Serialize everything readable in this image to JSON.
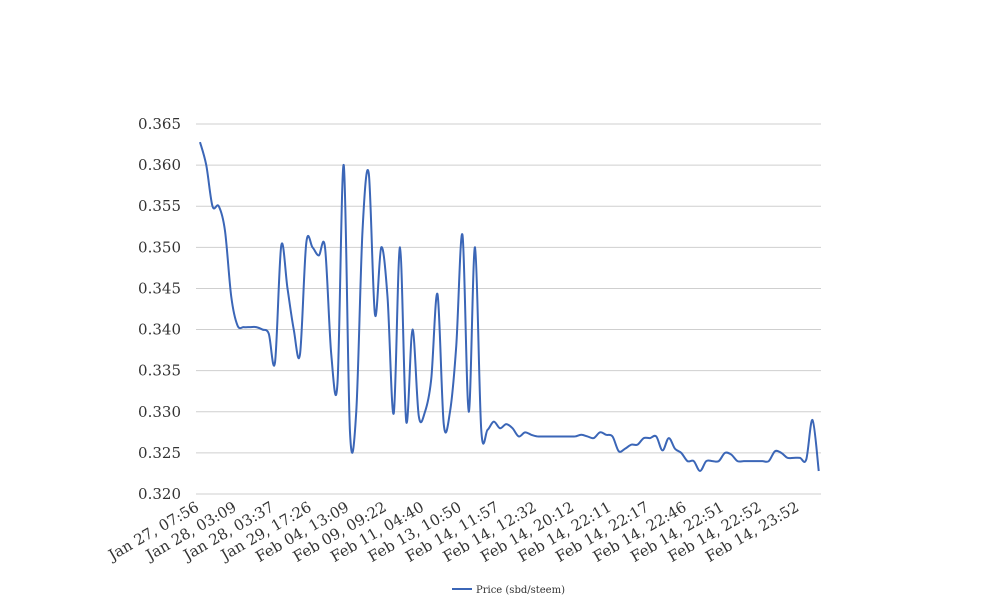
{
  "chart_data": {
    "type": "line",
    "categories": [
      "Jan 27, 07:56",
      null,
      null,
      null,
      null,
      null,
      "Jan 28, 03:09",
      null,
      null,
      null,
      null,
      null,
      "Jan 28, 03:37",
      null,
      null,
      null,
      null,
      null,
      "Jan 29, 17:26",
      null,
      null,
      null,
      null,
      null,
      "Feb 04, 13:09",
      null,
      null,
      null,
      null,
      null,
      "Feb 09, 09:22",
      null,
      null,
      null,
      null,
      null,
      "Feb 11, 04:40",
      null,
      null,
      null,
      null,
      null,
      "Feb 13, 10:50",
      null,
      null,
      null,
      null,
      null,
      "Feb 14, 11:57",
      null,
      null,
      null,
      null,
      null,
      "Feb 14, 12:32",
      null,
      null,
      null,
      null,
      null,
      "Feb 14, 20:12",
      null,
      null,
      null,
      null,
      null,
      "Feb 14, 22:11",
      null,
      null,
      null,
      null,
      null,
      "Feb 14, 22:17",
      null,
      null,
      null,
      null,
      null,
      "Feb 14, 22:46",
      null,
      null,
      null,
      null,
      null,
      "Feb 14, 22:51",
      null,
      null,
      null,
      null,
      null,
      "Feb 14, 22:52",
      null,
      null,
      null,
      null,
      null,
      "Feb 14, 23:52",
      null,
      null,
      null
    ],
    "series": [
      {
        "name": "Price (sbd/steem)",
        "color": "#3b66b7",
        "values": [
          0.3628,
          0.36,
          0.355,
          0.355,
          0.352,
          0.344,
          0.3405,
          0.3403,
          0.3403,
          0.3403,
          0.34,
          0.3395,
          0.336,
          0.3502,
          0.345,
          0.34,
          0.337,
          0.3505,
          0.35,
          0.349,
          0.35,
          0.337,
          0.3335,
          0.36,
          0.3275,
          0.33,
          0.352,
          0.359,
          0.3418,
          0.35,
          0.344,
          0.3298,
          0.35,
          0.3288,
          0.34,
          0.3295,
          0.33,
          0.334,
          0.3443,
          0.3285,
          0.33,
          0.338,
          0.3515,
          0.33,
          0.35,
          0.3278,
          0.3278,
          0.3288,
          0.328,
          0.3285,
          0.328,
          0.327,
          0.3275,
          0.3272,
          0.327,
          0.327,
          0.327,
          0.327,
          0.327,
          0.327,
          0.327,
          0.3272,
          0.327,
          0.3268,
          0.3275,
          0.3272,
          0.327,
          0.3252,
          0.3255,
          0.326,
          0.326,
          0.3268,
          0.3268,
          0.327,
          0.3253,
          0.3268,
          0.3255,
          0.325,
          0.324,
          0.324,
          0.3228,
          0.324,
          0.324,
          0.324,
          0.325,
          0.3248,
          0.324,
          0.324,
          0.324,
          0.324,
          0.324,
          0.324,
          0.3252,
          0.325,
          0.3244,
          0.3244,
          0.3244,
          0.3242,
          0.329,
          0.3228
        ]
      }
    ],
    "ylim": [
      0.32,
      0.365
    ],
    "yticks": [
      {
        "value": 0.32,
        "label": "0.320"
      },
      0.325,
      {
        "value": 0.33,
        "label": "0.330"
      },
      0.335,
      {
        "value": 0.34,
        "label": "0.340"
      },
      0.345,
      {
        "value": 0.35,
        "label": "0.350"
      },
      0.355,
      {
        "value": 0.36,
        "label": "0.360"
      },
      0.365
    ],
    "grid": true,
    "legend": "bottom"
  }
}
